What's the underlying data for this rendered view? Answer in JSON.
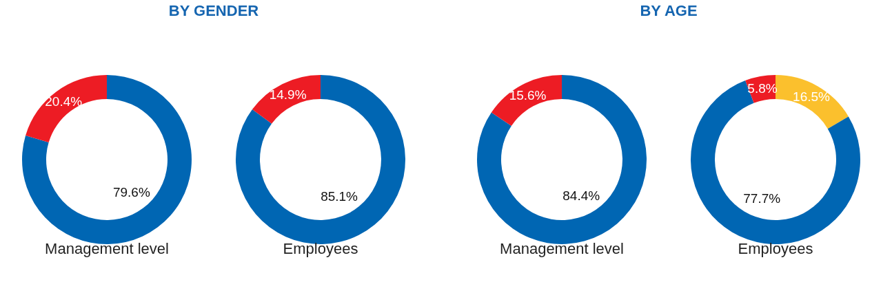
{
  "chart_data": [
    {
      "type": "donut",
      "title": "Management level",
      "annotations": [
        "BY GENDER"
      ],
      "categories": [
        null,
        null
      ],
      "values": [
        79.6,
        20.4
      ],
      "colors": [
        "#0066b3",
        "#ed1c24"
      ],
      "value_labels": [
        "79.6%",
        "20.4%"
      ]
    },
    {
      "type": "donut",
      "title": "Employees",
      "categories": [
        null,
        null
      ],
      "values": [
        85.1,
        14.9
      ],
      "colors": [
        "#0066b3",
        "#ed1c24"
      ],
      "value_labels": [
        "85.1%",
        "14.9%"
      ]
    },
    {
      "type": "donut",
      "title": "Management level",
      "annotations": [
        "BY AGE"
      ],
      "categories": [
        null,
        null
      ],
      "values": [
        84.4,
        15.6
      ],
      "colors": [
        "#0066b3",
        "#ed1c24"
      ],
      "value_labels": [
        "84.4%",
        "15.6%"
      ]
    },
    {
      "type": "donut",
      "title": "Employees",
      "categories": [
        null,
        null,
        null
      ],
      "values": [
        16.5,
        77.7,
        5.8
      ],
      "colors": [
        "#fbc02d",
        "#0066b3",
        "#ed1c24"
      ],
      "value_labels": [
        "16.5%",
        "77.7%",
        "5.8%"
      ]
    }
  ]
}
